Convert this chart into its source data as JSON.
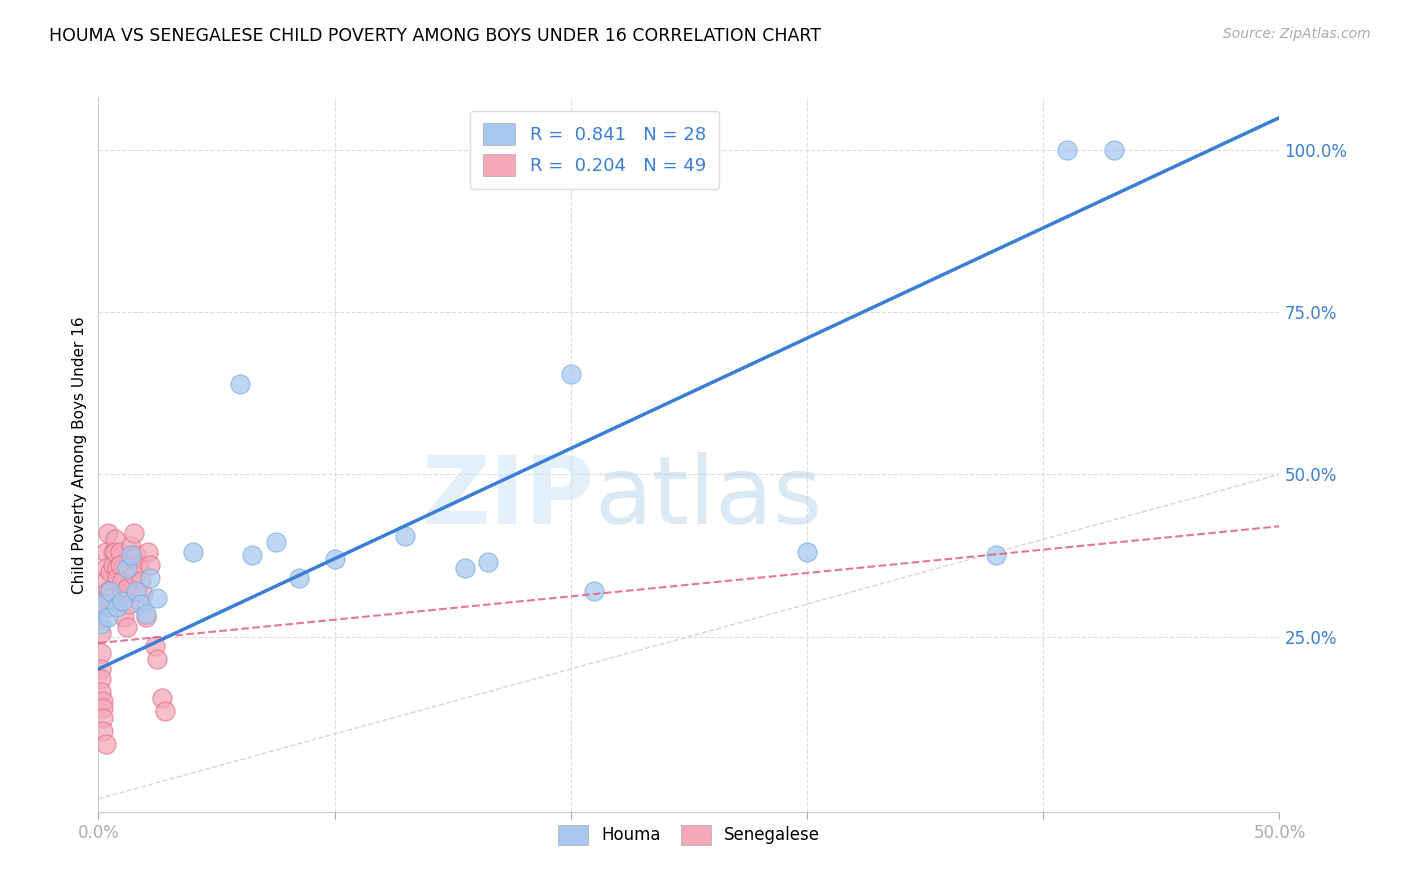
{
  "title": "HOUMA VS SENEGALESE CHILD POVERTY AMONG BOYS UNDER 16 CORRELATION CHART",
  "source": "Source: ZipAtlas.com",
  "ylabel": "Child Poverty Among Boys Under 16",
  "watermark": "ZIPatlas",
  "houma_R": 0.841,
  "houma_N": 28,
  "senegalese_R": 0.204,
  "senegalese_N": 49,
  "houma_color": "#a8c8f0",
  "houma_edge_color": "#7aaede",
  "houma_line_color": "#3a7fd5",
  "senegalese_color": "#f4a8b8",
  "senegalese_edge_color": "#e07090",
  "senegalese_line_color": "#e06080",
  "diagonal_color": "#cccccc",
  "grid_color": "#dddddd",
  "xlim": [
    0.0,
    0.5
  ],
  "ylim": [
    -0.02,
    1.08
  ],
  "houma_x": [
    0.001,
    0.002,
    0.004,
    0.005,
    0.008,
    0.01,
    0.012,
    0.014,
    0.016,
    0.018,
    0.02,
    0.022,
    0.025,
    0.04,
    0.06,
    0.065,
    0.075,
    0.085,
    0.1,
    0.13,
    0.155,
    0.165,
    0.2,
    0.21,
    0.3,
    0.38,
    0.41,
    0.43
  ],
  "houma_y": [
    0.27,
    0.3,
    0.28,
    0.32,
    0.295,
    0.305,
    0.355,
    0.375,
    0.32,
    0.3,
    0.285,
    0.34,
    0.31,
    0.38,
    0.64,
    0.375,
    0.395,
    0.34,
    0.37,
    0.405,
    0.355,
    0.365,
    0.655,
    0.32,
    0.38,
    0.375,
    1.0,
    1.0
  ],
  "senegalese_x": [
    0.0,
    0.0,
    0.001,
    0.001,
    0.001,
    0.001,
    0.001,
    0.002,
    0.002,
    0.002,
    0.002,
    0.003,
    0.003,
    0.003,
    0.003,
    0.004,
    0.004,
    0.005,
    0.005,
    0.005,
    0.006,
    0.006,
    0.007,
    0.007,
    0.008,
    0.008,
    0.009,
    0.009,
    0.01,
    0.01,
    0.011,
    0.012,
    0.012,
    0.013,
    0.014,
    0.015,
    0.015,
    0.015,
    0.016,
    0.017,
    0.018,
    0.019,
    0.02,
    0.021,
    0.022,
    0.024,
    0.025,
    0.027,
    0.028
  ],
  "senegalese_y": [
    0.305,
    0.275,
    0.255,
    0.225,
    0.2,
    0.185,
    0.165,
    0.15,
    0.14,
    0.125,
    0.105,
    0.085,
    0.38,
    0.355,
    0.335,
    0.41,
    0.32,
    0.295,
    0.31,
    0.35,
    0.38,
    0.36,
    0.4,
    0.38,
    0.355,
    0.34,
    0.38,
    0.36,
    0.335,
    0.315,
    0.28,
    0.265,
    0.325,
    0.3,
    0.39,
    0.41,
    0.37,
    0.345,
    0.375,
    0.36,
    0.335,
    0.315,
    0.28,
    0.38,
    0.36,
    0.235,
    0.215,
    0.155,
    0.135
  ],
  "xtick_positions": [
    0.0,
    0.1,
    0.2,
    0.3,
    0.4,
    0.5
  ],
  "xtick_labels_show": [
    "0.0%",
    "",
    "",
    "",
    "",
    "50.0%"
  ],
  "ytick_positions": [
    0.25,
    0.5,
    0.75,
    1.0
  ],
  "ytick_labels": [
    "25.0%",
    "50.0%",
    "75.0%",
    "100.0%"
  ]
}
